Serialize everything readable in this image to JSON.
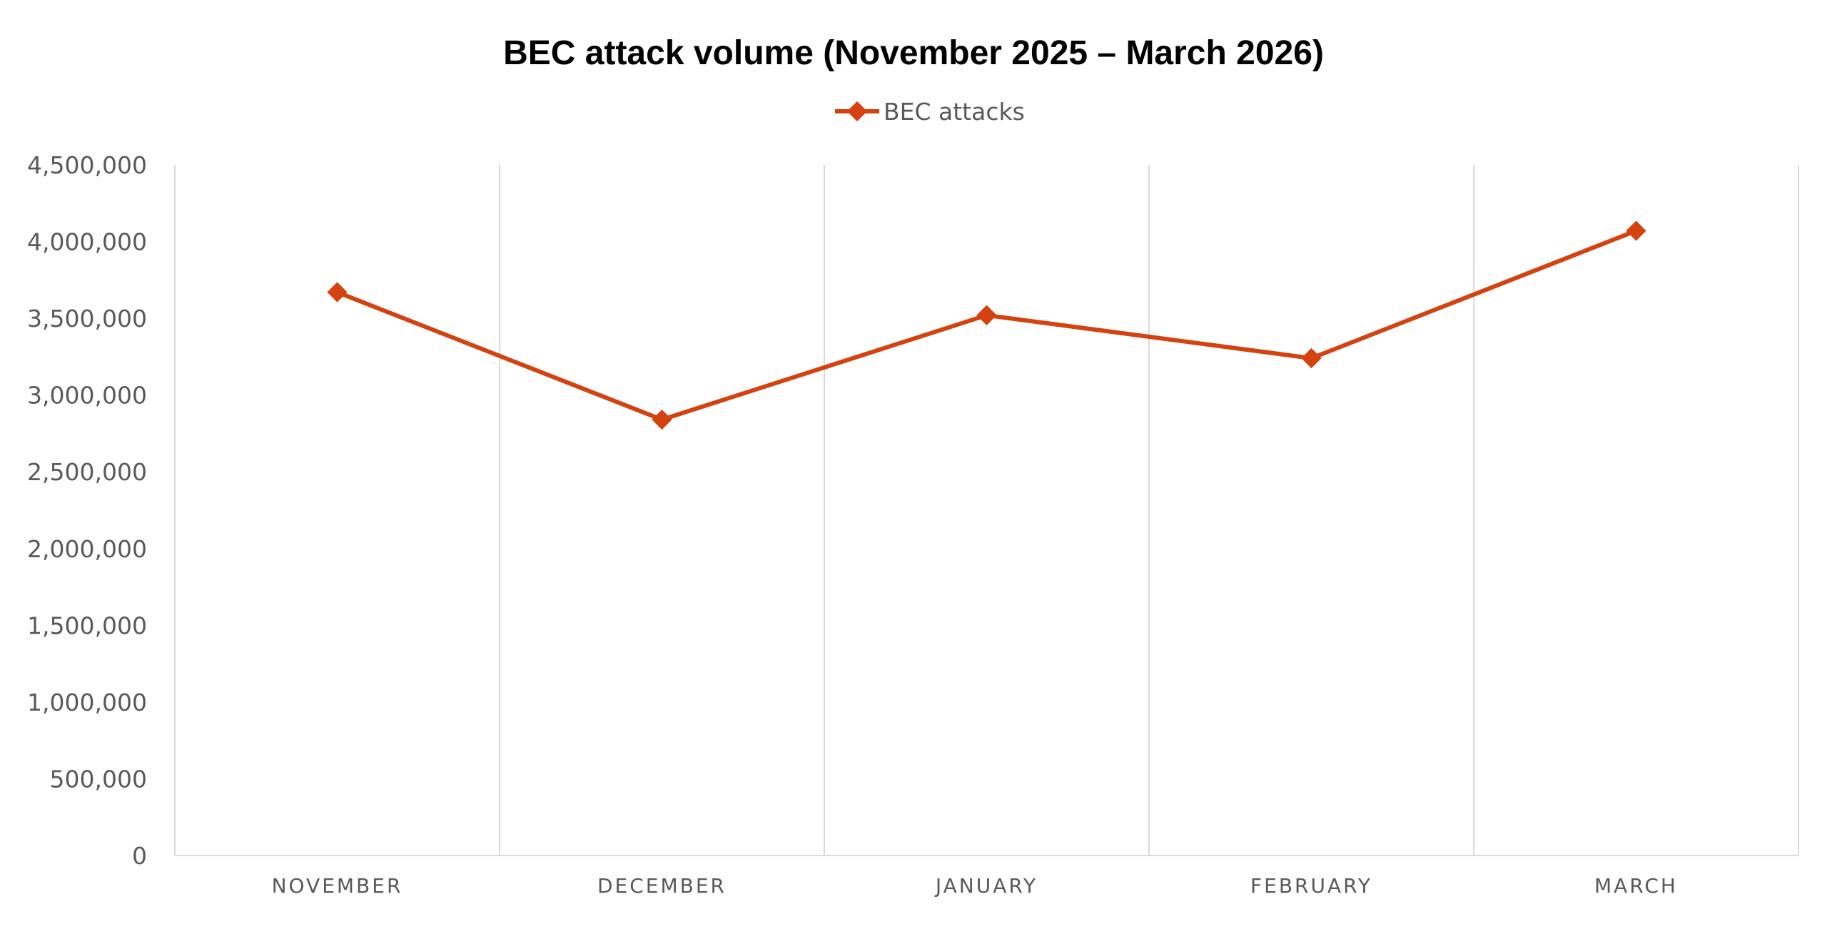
{
  "chart_data": {
    "type": "line",
    "title": "BEC attack volume (November 2025 – March 2026)",
    "xlabel": "",
    "ylabel": "",
    "categories": [
      "NOVEMBER",
      "DECEMBER",
      "JANUARY",
      "FEBRUARY",
      "MARCH"
    ],
    "series": [
      {
        "name": "BEC attacks",
        "values": [
          3670000,
          2840000,
          3520000,
          3240000,
          4070000
        ],
        "color": "#d4420f",
        "marker": "diamond"
      }
    ],
    "ylim": [
      0,
      4500000
    ],
    "yticks": [
      0,
      500000,
      1000000,
      1500000,
      2000000,
      2500000,
      3000000,
      3500000,
      4000000,
      4500000
    ],
    "ytick_labels": [
      "0",
      "500,000",
      "1,000,000",
      "1,500,000",
      "2,000,000",
      "2,500,000",
      "3,000,000",
      "3,500,000",
      "4,000,000",
      "4,500,000"
    ],
    "grid": "vertical",
    "legend": "top-center"
  }
}
